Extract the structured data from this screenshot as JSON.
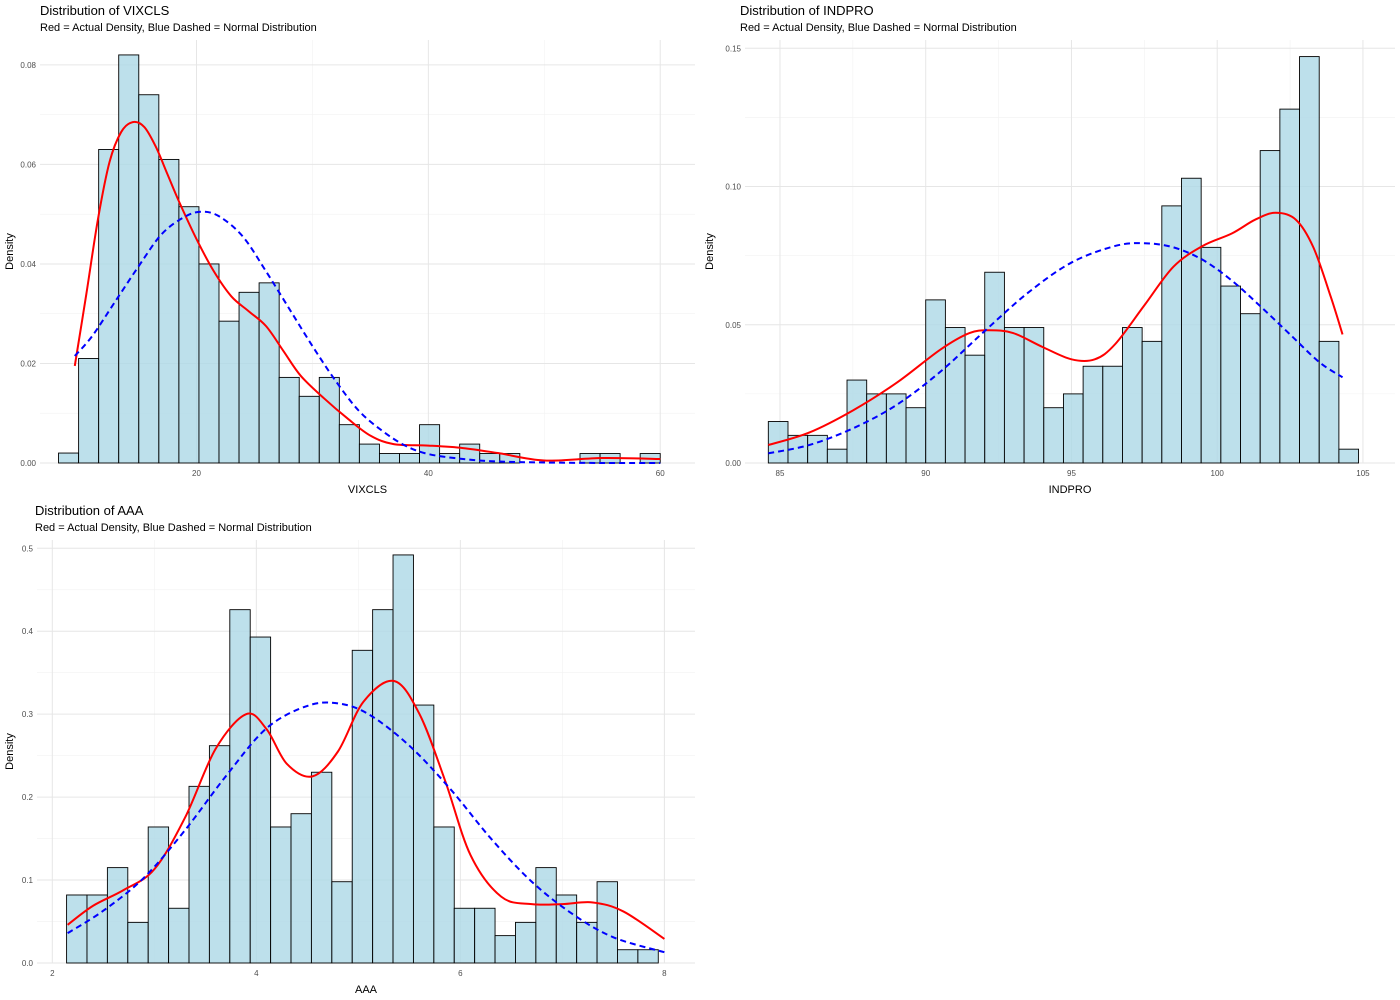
{
  "chart_data": [
    {
      "type": "bar",
      "title": "Distribution of VIXCLS",
      "subtitle": "Red = Actual Density, Blue Dashed = Normal Distribution",
      "xlabel": "VIXCLS",
      "ylabel": "Density",
      "xlim": [
        6.5,
        63
      ],
      "ylim": [
        0,
        0.085
      ],
      "xticks": [
        20,
        40,
        60
      ],
      "yticks": [
        0,
        0.02,
        0.04,
        0.06,
        0.08
      ],
      "ytick_labels": [
        "0.00",
        "0.02",
        "0.04",
        "0.06",
        "0.08"
      ],
      "grid": true,
      "bin_start": 8.1,
      "bin_width": 1.73,
      "values": [
        0.002,
        0.021,
        0.063,
        0.082,
        0.074,
        0.061,
        0.0515,
        0.04,
        0.0285,
        0.0343,
        0.0362,
        0.0172,
        0.0134,
        0.0172,
        0.0077,
        0.0038,
        0.0019,
        0.0019,
        0.0077,
        0.0019,
        0.0038,
        0.0019,
        0.0019,
        0,
        0,
        0,
        0.0019,
        0.0019,
        0,
        0.0019
      ],
      "series": [
        {
          "name": "Actual Density",
          "color": "#ff0000",
          "dash": false,
          "x": [
            9.5,
            10.5,
            11.5,
            12.5,
            13.5,
            14.5,
            15.5,
            16.5,
            17.5,
            18.5,
            20,
            21.5,
            23,
            24.5,
            26,
            27.5,
            29,
            31,
            33,
            35,
            37,
            40,
            43,
            46,
            50,
            55,
            60
          ],
          "y": [
            0.0195,
            0.034,
            0.049,
            0.0605,
            0.0665,
            0.0685,
            0.0675,
            0.0635,
            0.058,
            0.0525,
            0.045,
            0.0385,
            0.0335,
            0.0305,
            0.0275,
            0.0225,
            0.0175,
            0.013,
            0.009,
            0.0055,
            0.0038,
            0.0035,
            0.003,
            0.002,
            0.0005,
            0.001,
            0.0008
          ]
        },
        {
          "name": "Normal Distribution",
          "color": "#0000ff",
          "dash": true,
          "x": [
            9.5,
            11,
            13,
            15,
            17,
            19,
            20.5,
            22,
            24,
            26,
            28,
            30,
            32,
            34,
            36,
            38,
            40,
            43,
            46,
            50,
            55,
            60
          ],
          "y": [
            0.0215,
            0.0255,
            0.0325,
            0.0395,
            0.046,
            0.0495,
            0.0505,
            0.0495,
            0.0455,
            0.0385,
            0.031,
            0.0235,
            0.0165,
            0.0105,
            0.0065,
            0.0035,
            0.0018,
            0.0008,
            0.0003,
            0.0001,
            0,
            0
          ]
        }
      ]
    },
    {
      "type": "bar",
      "title": "Distribution of INDPRO",
      "subtitle": "Red = Actual Density, Blue Dashed = Normal Distribution",
      "xlabel": "INDPRO",
      "ylabel": "Density",
      "xlim": [
        83.8,
        106.1
      ],
      "ylim": [
        0,
        0.153
      ],
      "xticks": [
        85,
        90,
        95,
        100,
        105
      ],
      "yticks": [
        0,
        0.05,
        0.1,
        0.15
      ],
      "ytick_labels": [
        "0.00",
        "0.05",
        "0.10",
        "0.15"
      ],
      "grid": true,
      "bin_start": 84.6,
      "bin_width": 0.675,
      "values": [
        0.015,
        0.01,
        0.01,
        0.005,
        0.03,
        0.025,
        0.025,
        0.02,
        0.059,
        0.049,
        0.039,
        0.069,
        0.049,
        0.049,
        0.02,
        0.025,
        0.035,
        0.035,
        0.049,
        0.044,
        0.093,
        0.103,
        0.078,
        0.064,
        0.054,
        0.113,
        0.128,
        0.147,
        0.044,
        0.005
      ],
      "series": [
        {
          "name": "Actual Density",
          "color": "#ff0000",
          "dash": false,
          "x": [
            84.6,
            86,
            87.5,
            89,
            90.5,
            91.5,
            92.2,
            93,
            94,
            95,
            95.8,
            96.5,
            97.5,
            98.5,
            99.5,
            100.5,
            101.3,
            102,
            102.7,
            103.3,
            103.9,
            104.3
          ],
          "y": [
            0.0065,
            0.011,
            0.019,
            0.029,
            0.041,
            0.047,
            0.048,
            0.047,
            0.042,
            0.0375,
            0.0375,
            0.043,
            0.057,
            0.071,
            0.0785,
            0.083,
            0.088,
            0.0905,
            0.088,
            0.078,
            0.06,
            0.0465
          ]
        },
        {
          "name": "Normal Distribution",
          "color": "#0000ff",
          "dash": true,
          "x": [
            84.6,
            86,
            87.5,
            89,
            90.5,
            92,
            93.5,
            95,
            96.5,
            97.5,
            98.5,
            99.5,
            100.5,
            101.5,
            102.5,
            103.5,
            104.3
          ],
          "y": [
            0.0035,
            0.0065,
            0.0125,
            0.021,
            0.033,
            0.0475,
            0.0615,
            0.0725,
            0.0785,
            0.0795,
            0.078,
            0.0735,
            0.066,
            0.0565,
            0.0465,
            0.0365,
            0.031
          ]
        }
      ]
    },
    {
      "type": "bar",
      "title": "Distribution of AAA",
      "subtitle": "Red = Actual Density, Blue Dashed = Normal Distribution",
      "xlabel": "AAA",
      "ylabel": "Density",
      "xlim": [
        1.85,
        8.3
      ],
      "ylim": [
        0,
        0.51
      ],
      "xticks": [
        2,
        4,
        6,
        8
      ],
      "yticks": [
        0,
        0.1,
        0.2,
        0.3,
        0.4,
        0.5
      ],
      "ytick_labels": [
        "0.0",
        "0.1",
        "0.2",
        "0.3",
        "0.4",
        "0.5"
      ],
      "grid": true,
      "bin_start": 2.14,
      "bin_width": 0.2,
      "values": [
        0.082,
        0.082,
        0.115,
        0.049,
        0.164,
        0.066,
        0.213,
        0.262,
        0.426,
        0.393,
        0.164,
        0.18,
        0.23,
        0.098,
        0.377,
        0.426,
        0.492,
        0.311,
        0.164,
        0.066,
        0.066,
        0.033,
        0.049,
        0.115,
        0.082,
        0.049,
        0.098,
        0.016,
        0.016
      ],
      "series": [
        {
          "name": "Actual Density",
          "color": "#ff0000",
          "dash": false,
          "x": [
            2.15,
            2.4,
            2.7,
            3,
            3.3,
            3.6,
            3.9,
            4.1,
            4.3,
            4.55,
            4.8,
            5.05,
            5.35,
            5.6,
            5.85,
            6.1,
            6.4,
            6.7,
            7,
            7.3,
            7.6,
            8
          ],
          "y": [
            0.046,
            0.069,
            0.088,
            0.113,
            0.175,
            0.258,
            0.3,
            0.282,
            0.24,
            0.225,
            0.255,
            0.315,
            0.34,
            0.3,
            0.22,
            0.13,
            0.08,
            0.071,
            0.071,
            0.073,
            0.062,
            0.029
          ]
        },
        {
          "name": "Normal Distribution",
          "color": "#0000ff",
          "dash": true,
          "x": [
            2.15,
            2.5,
            2.9,
            3.3,
            3.7,
            4.1,
            4.5,
            4.8,
            5.1,
            5.5,
            5.9,
            6.3,
            6.7,
            7.1,
            7.5,
            8
          ],
          "y": [
            0.036,
            0.063,
            0.103,
            0.16,
            0.225,
            0.283,
            0.31,
            0.313,
            0.3,
            0.262,
            0.21,
            0.15,
            0.098,
            0.059,
            0.031,
            0.013
          ]
        }
      ]
    }
  ]
}
